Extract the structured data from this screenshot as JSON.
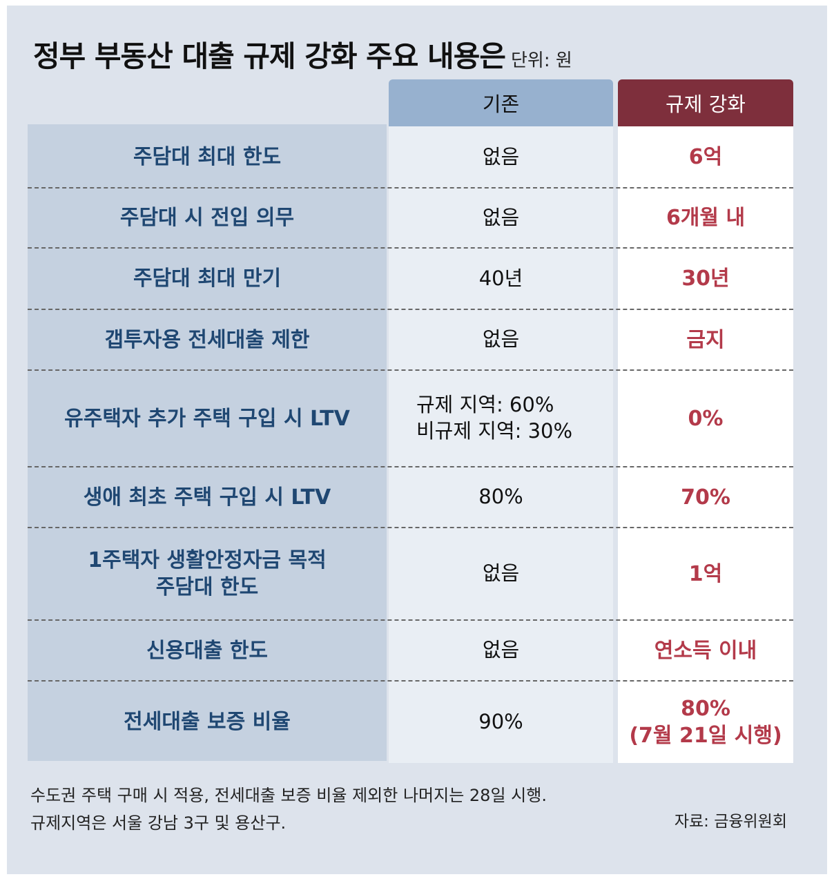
{
  "title": "정부 부동산 대출 규제 강화 주요 내용은",
  "unit": "단위: 원",
  "headers": {
    "base": "기존",
    "new": "규제 강화"
  },
  "rows": [
    {
      "label": "주담대 최대 한도",
      "base": "없음",
      "new": "6억"
    },
    {
      "label": "주담대 시 전입 의무",
      "base": "없음",
      "new": "6개월 내"
    },
    {
      "label": "주담대 최대 만기",
      "base": "40년",
      "new": "30년"
    },
    {
      "label": "갭투자용 전세대출 제한",
      "base": "없음",
      "new": "금지"
    },
    {
      "label": "유주택자 추가 주택 구입 시 LTV",
      "base": "규제 지역: 60%\n비규제 지역: 30%",
      "new": "0%"
    },
    {
      "label": "생애 최초 주택 구입 시 LTV",
      "base": "80%",
      "new": "70%"
    },
    {
      "label": "1주택자 생활안정자금 목적\n주담대 한도",
      "base": "없음",
      "new": "1억"
    },
    {
      "label": "신용대출 한도",
      "base": "없음",
      "new": "연소득 이내"
    },
    {
      "label": "전세대출 보증 비율",
      "base": "90%",
      "new": "80%\n(7월 21일 시행)"
    }
  ],
  "notes": [
    "수도권 주택 구매 시 적용, 전세대출 보증 비율 제외한 나머지는 28일 시행.",
    "규제지역은 서울 강남 3구 및 용산구."
  ],
  "source": "자료: 금융위원회"
}
